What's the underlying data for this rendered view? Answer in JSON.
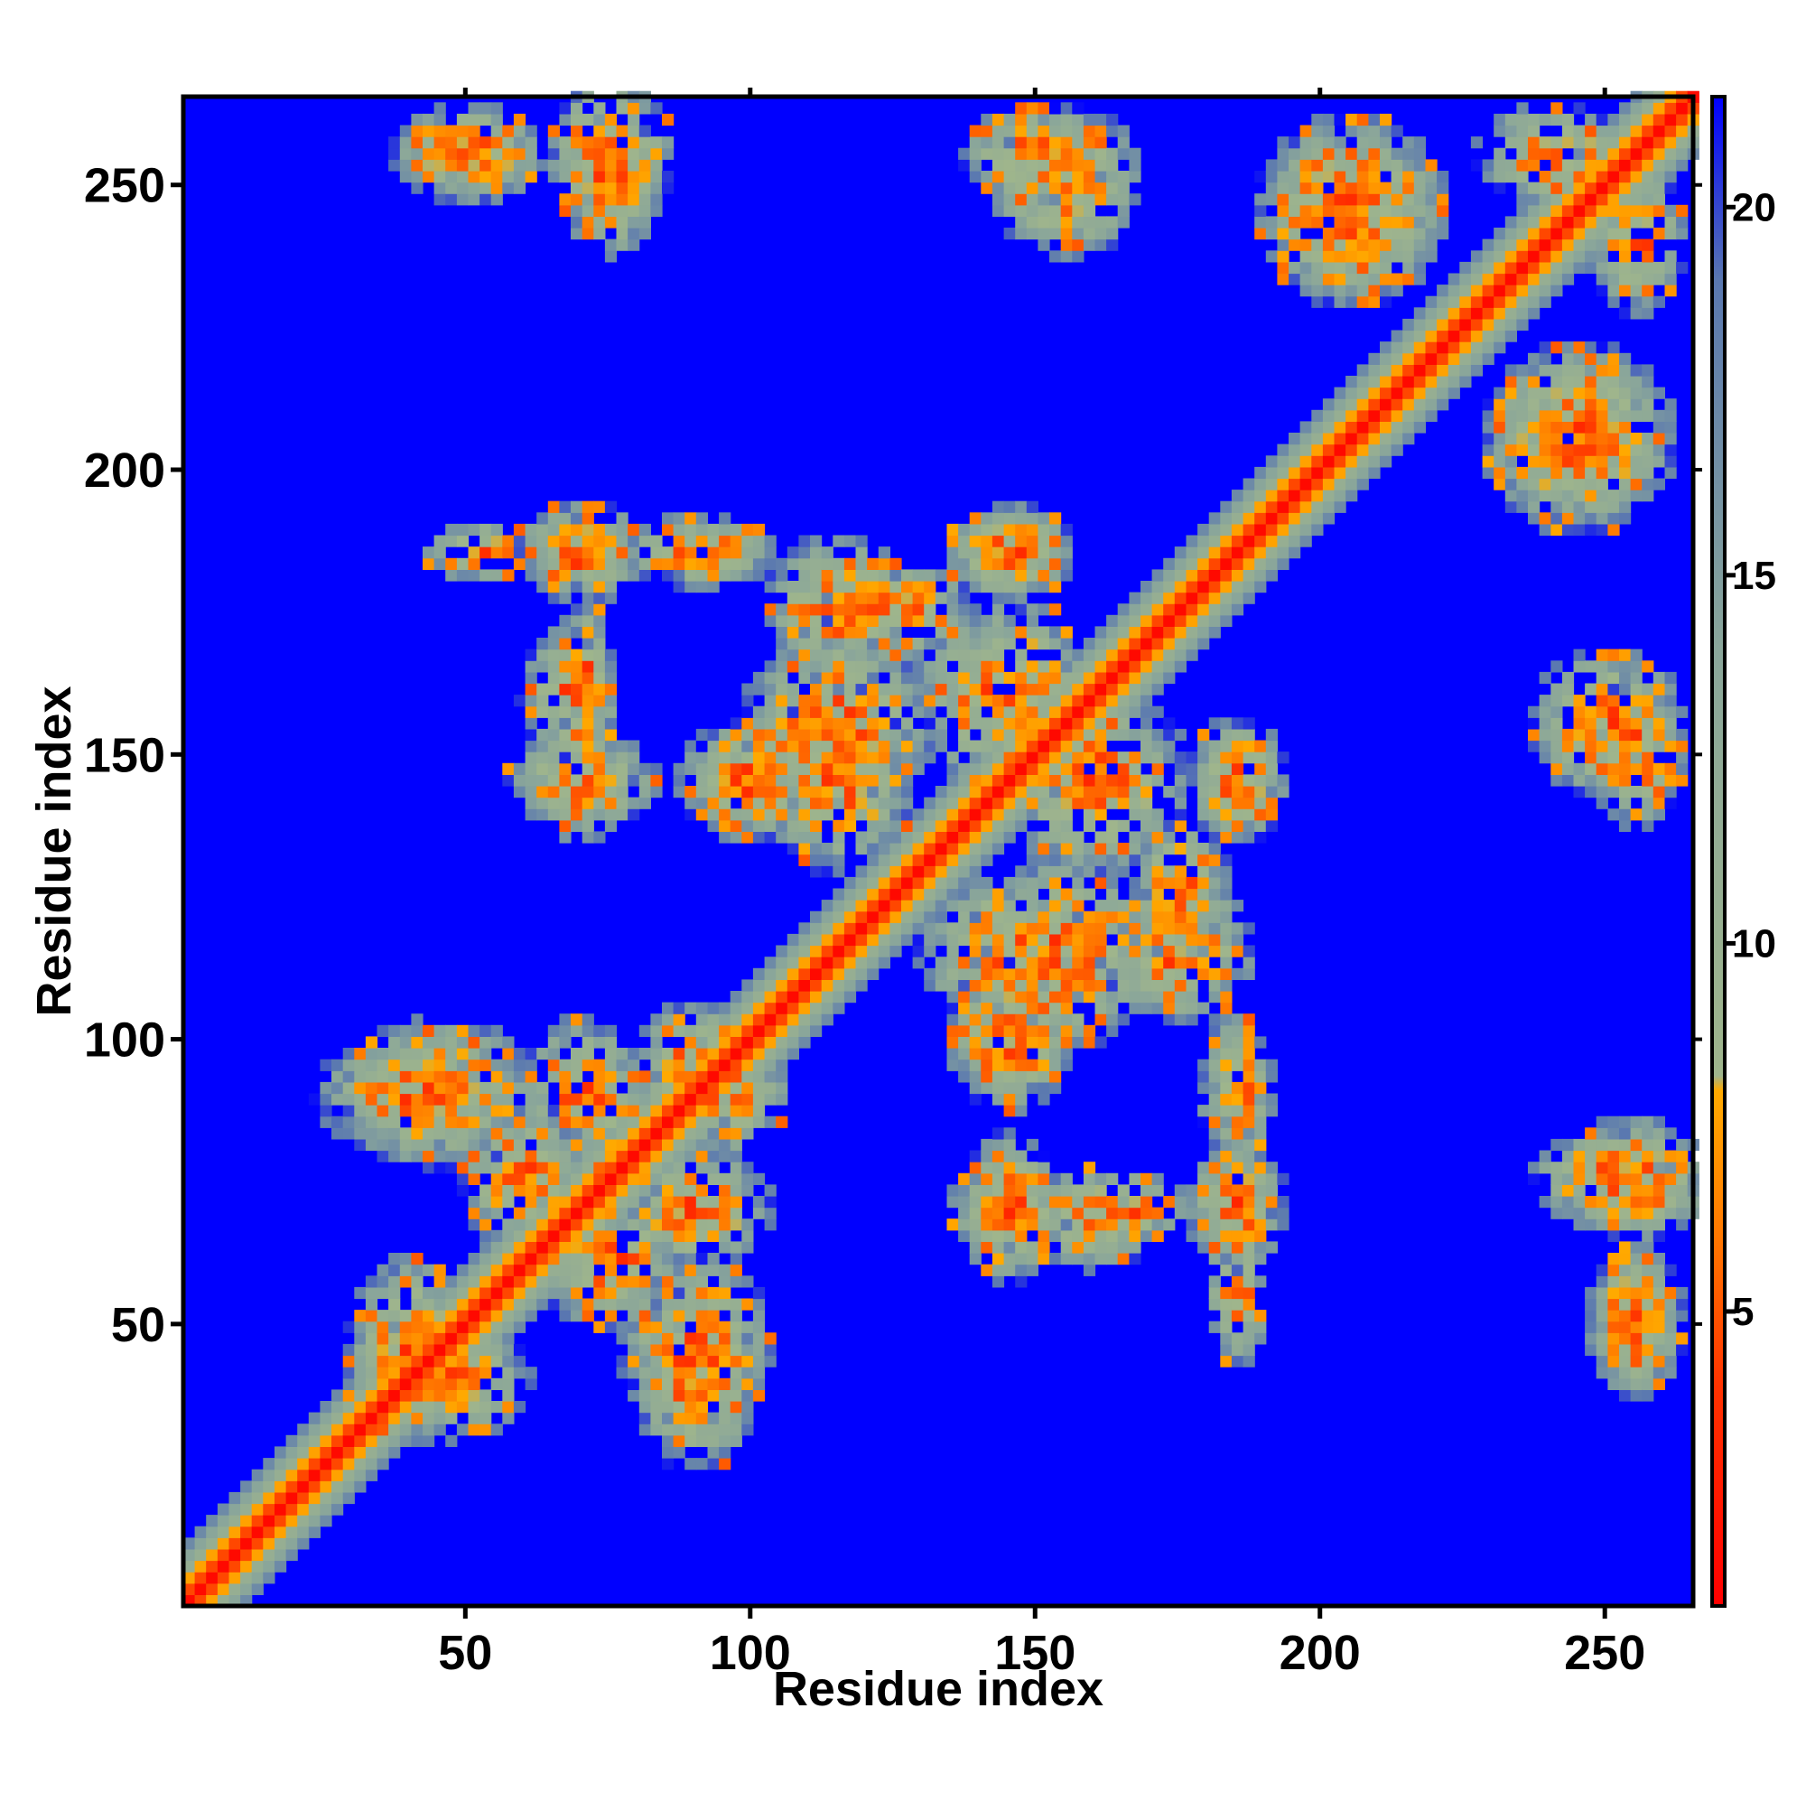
{
  "chart_data": {
    "type": "heatmap",
    "title": "",
    "xlabel": "Residue index",
    "ylabel": "Residue index",
    "x_range": [
      1,
      265
    ],
    "y_range": [
      1,
      265
    ],
    "x_ticks": [
      50,
      100,
      150,
      200,
      250
    ],
    "y_ticks": [
      50,
      100,
      150,
      200,
      250
    ],
    "colorbar": {
      "range": [
        1,
        21.5
      ],
      "ticks": [
        5,
        10,
        15,
        20
      ],
      "stops": [
        {
          "value": 1,
          "color": "#ff0000"
        },
        {
          "value": 4,
          "color": "#ff3300"
        },
        {
          "value": 6,
          "color": "#ff7700"
        },
        {
          "value": 8,
          "color": "#ffaa00"
        },
        {
          "value": 8.2,
          "color": "#9fb58c"
        },
        {
          "value": 14,
          "color": "#8aa69a"
        },
        {
          "value": 19,
          "color": "#5a78b0"
        },
        {
          "value": 21.5,
          "color": "#0000ff"
        }
      ]
    },
    "background_color": "#0000ff",
    "diagonal": {
      "value_center": 1.5,
      "band_width": 5
    },
    "contact_clusters": [
      {
        "x": 70,
        "y": 185,
        "rx": 8,
        "ry": 6
      },
      {
        "x": 55,
        "y": 185,
        "rx": 12,
        "ry": 5
      },
      {
        "x": 93,
        "y": 185,
        "rx": 10,
        "ry": 5
      },
      {
        "x": 145,
        "y": 185,
        "rx": 10,
        "ry": 7
      },
      {
        "x": 68,
        "y": 160,
        "rx": 8,
        "ry": 10
      },
      {
        "x": 70,
        "y": 145,
        "rx": 12,
        "ry": 8
      },
      {
        "x": 100,
        "y": 145,
        "rx": 12,
        "ry": 10
      },
      {
        "x": 115,
        "y": 155,
        "rx": 15,
        "ry": 15
      },
      {
        "x": 185,
        "y": 145,
        "rx": 8,
        "ry": 10
      },
      {
        "x": 160,
        "y": 145,
        "rx": 15,
        "ry": 15
      },
      {
        "x": 125,
        "y": 175,
        "rx": 12,
        "ry": 8
      },
      {
        "x": 145,
        "y": 100,
        "rx": 10,
        "ry": 10
      },
      {
        "x": 145,
        "y": 115,
        "rx": 15,
        "ry": 12
      },
      {
        "x": 175,
        "y": 115,
        "rx": 12,
        "ry": 12
      },
      {
        "x": 185,
        "y": 70,
        "rx": 8,
        "ry": 10
      },
      {
        "x": 185,
        "y": 90,
        "rx": 6,
        "ry": 12
      },
      {
        "x": 165,
        "y": 70,
        "rx": 10,
        "ry": 6
      },
      {
        "x": 145,
        "y": 70,
        "rx": 10,
        "ry": 8
      },
      {
        "x": 40,
        "y": 90,
        "rx": 15,
        "ry": 10
      },
      {
        "x": 70,
        "y": 90,
        "rx": 10,
        "ry": 12
      },
      {
        "x": 95,
        "y": 90,
        "rx": 10,
        "ry": 10
      },
      {
        "x": 40,
        "y": 45,
        "rx": 10,
        "ry": 15
      },
      {
        "x": 90,
        "y": 45,
        "rx": 12,
        "ry": 15
      },
      {
        "x": 75,
        "y": 60,
        "rx": 12,
        "ry": 10
      },
      {
        "x": 50,
        "y": 255,
        "rx": 12,
        "ry": 6
      },
      {
        "x": 75,
        "y": 250,
        "rx": 8,
        "ry": 12
      },
      {
        "x": 150,
        "y": 255,
        "rx": 12,
        "ry": 8
      },
      {
        "x": 205,
        "y": 245,
        "rx": 15,
        "ry": 15
      },
      {
        "x": 245,
        "y": 205,
        "rx": 15,
        "ry": 15
      },
      {
        "x": 250,
        "y": 155,
        "rx": 12,
        "ry": 12
      },
      {
        "x": 255,
        "y": 75,
        "rx": 12,
        "ry": 10
      },
      {
        "x": 255,
        "y": 50,
        "rx": 8,
        "ry": 12
      },
      {
        "x": 240,
        "y": 255,
        "rx": 12,
        "ry": 8
      }
    ]
  }
}
